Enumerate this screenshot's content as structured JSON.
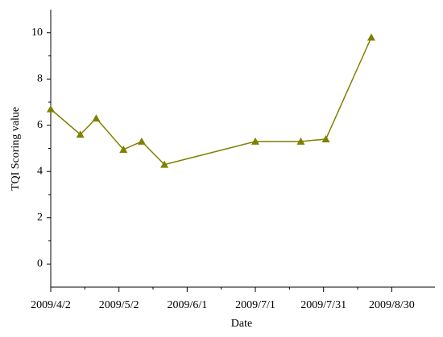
{
  "chart_data": {
    "type": "line",
    "x_label": "Date",
    "y_label": "TQI Scoring value",
    "x": [
      "2009/4/2",
      "2009/4/15",
      "2009/4/22",
      "2009/5/4",
      "2009/5/12",
      "2009/5/22",
      "2009/7/1",
      "2009/7/21",
      "2009/8/1",
      "2009/8/21"
    ],
    "series": [
      {
        "color": "#808000",
        "values": [
          6.7,
          5.6,
          6.3,
          4.95,
          5.3,
          4.3,
          5.3,
          5.3,
          5.4,
          9.8
        ]
      }
    ],
    "xlim": [
      "2009/4/2",
      "2009/9/18"
    ],
    "xticks": [
      "2009/4/2",
      "2009/5/2",
      "2009/6/1",
      "2009/7/1",
      "2009/7/31",
      "2009/8/30"
    ],
    "ylim": [
      -1,
      11
    ],
    "yticks": [
      0,
      2,
      4,
      6,
      8,
      10
    ],
    "grid": false
  }
}
